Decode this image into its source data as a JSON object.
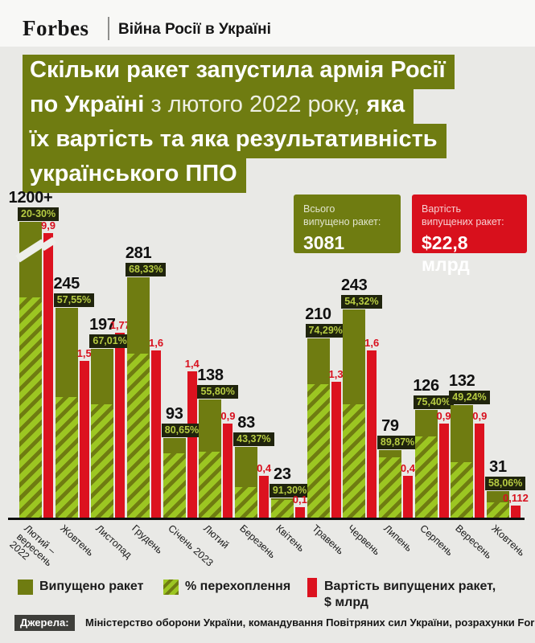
{
  "header": {
    "brand": "Forbes",
    "tagline": "Війна Росії в Україні"
  },
  "title": {
    "lines": [
      [
        {
          "t": "Скільки ракет запустила армія Росії",
          "b": true
        }
      ],
      [
        {
          "t": "по Україні ",
          "b": true
        },
        {
          "t": "з лютого 2022 року,",
          "b": false
        },
        {
          "t": " яка",
          "b": true
        }
      ],
      [
        {
          "t": "їх вартість та яка результативність",
          "b": true
        }
      ],
      [
        {
          "t": "українського ППО",
          "b": true
        }
      ]
    ]
  },
  "summary": {
    "total": {
      "label": "Всього\nвипущено ракет:",
      "value": "3081"
    },
    "cost": {
      "label": "Вартість\nвипущених ракет:",
      "value": "$22,8 млрд"
    }
  },
  "chart_data": {
    "type": "bar",
    "categories": [
      "Лютий –\nвересень\n2022",
      "Жовтень",
      "Листопад",
      "Грудень",
      "Січень 2023",
      "Лютий",
      "Березень",
      "Квітень",
      "Травень",
      "Червень",
      "Липень",
      "Серпень",
      "Вересень",
      "Жовтень"
    ],
    "series": [
      {
        "name": "Випущено ракет",
        "values": [
          1200,
          245,
          197,
          281,
          93,
          138,
          83,
          23,
          210,
          243,
          79,
          126,
          132,
          31
        ],
        "labels": [
          "1200+",
          "245",
          "197",
          "281",
          "93",
          "138",
          "83",
          "23",
          "210",
          "243",
          "79",
          "126",
          "132",
          "31"
        ]
      },
      {
        "name": "% перехоплення",
        "values": [
          25,
          57.55,
          67.01,
          68.33,
          80.65,
          55.8,
          43.37,
          91.3,
          74.29,
          54.32,
          89.87,
          75.4,
          49.24,
          58.06
        ],
        "labels": [
          "20-30%",
          "57,55%",
          "67,01%",
          "68,33%",
          "80,65%",
          "55,80%",
          "43,37%",
          "91,30%",
          "74,29%",
          "54,32%",
          "89,87%",
          "75,40%",
          "49,24%",
          "58,06%"
        ]
      },
      {
        "name": "Вартість випущених ракет, $ млрд",
        "values": [
          9.9,
          1.5,
          1.77,
          1.6,
          1.4,
          0.9,
          0.4,
          0.1,
          1.3,
          1.6,
          0.4,
          0.9,
          0.9,
          0.112
        ],
        "labels": [
          "9,9",
          "1,5",
          "1,77",
          "1,6",
          "1,4",
          "0,9",
          "0,4",
          "0,1",
          "1,3",
          "1,6",
          "0,4",
          "0,9",
          "0,9",
          "0,112"
        ]
      }
    ],
    "title": "Скільки ракет запустила армія Росії по Україні з лютого 2022 року, яка їх вартість та яка результативність українського ППО",
    "xlabel": "",
    "ylabel": "",
    "ylim": [
      0,
      300
    ],
    "grid": false,
    "legend_position": "bottom",
    "axis_break_group": 0,
    "colors": {
      "launched": "#6f7c11",
      "intercept_hatch": "#9cc622",
      "cost": "#dc121f",
      "badge_bg": "#20240d",
      "badge_text": "#b7cc42"
    }
  },
  "legend": {
    "items": [
      {
        "label": "Випущено ракет",
        "swatch": "olive-solid"
      },
      {
        "label": "% перехоплення",
        "swatch": "green-hatch"
      },
      {
        "label": "Вартість випущених ракет,\n$ млрд",
        "swatch": "red-bar"
      }
    ]
  },
  "footer": {
    "sources_label": "Джерела:",
    "sources_text": "Міністерство оборони України, командування Повітряних сил України, розрахунки Forbes"
  }
}
